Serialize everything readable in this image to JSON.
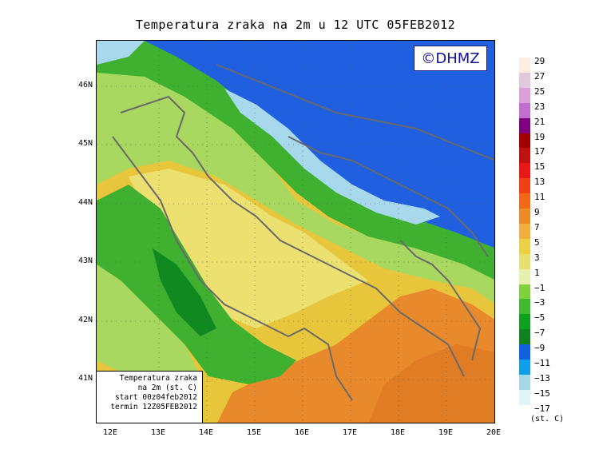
{
  "title": "Temperatura zraka na 2m u 12 UTC 05FEB2012",
  "logo": "©DHMZ",
  "info_box": {
    "line1": "Temperatura zraka",
    "line2": "na 2m (st. C)",
    "line3": "start 00z04feb2012",
    "line4": "termin 12Z05FEB2012"
  },
  "lat_labels": [
    "46N",
    "45N",
    "44N",
    "43N",
    "42N",
    "41N"
  ],
  "lon_labels": [
    "12E",
    "13E",
    "14E",
    "15E",
    "16E",
    "17E",
    "18E",
    "19E",
    "20E"
  ],
  "legend": {
    "labels": [
      "29",
      "27",
      "25",
      "23",
      "21",
      "19",
      "17",
      "15",
      "13",
      "11",
      "9",
      "7",
      "5",
      "3",
      "1",
      "−1",
      "−3",
      "−5",
      "−7",
      "−9",
      "−11",
      "−13",
      "−15",
      "−17"
    ],
    "unit": "(st. C)",
    "colors": [
      "#fbeee0",
      "#e2c8dc",
      "#dca0d8",
      "#c070cc",
      "#800080",
      "#a00000",
      "#c01010",
      "#e81818",
      "#f04018",
      "#f06818",
      "#ec8c28",
      "#f0b040",
      "#ecd048",
      "#e6e070",
      "#e8f0b0",
      "#80d040",
      "#40b830",
      "#10a020",
      "#108020",
      "#1060e0",
      "#10a0e8",
      "#a8d8e8",
      "#e0f4f8",
      "#ffffff"
    ]
  },
  "map_colors": {
    "warm_orange": "#e88a2c",
    "yellow": "#e8c63c",
    "pale_yellow": "#ece070",
    "light_green": "#a8d860",
    "green": "#40b030",
    "dark_green": "#108a20",
    "blue": "#2060e0",
    "light_blue": "#a8d8ec",
    "border": "#6a6a6a"
  }
}
